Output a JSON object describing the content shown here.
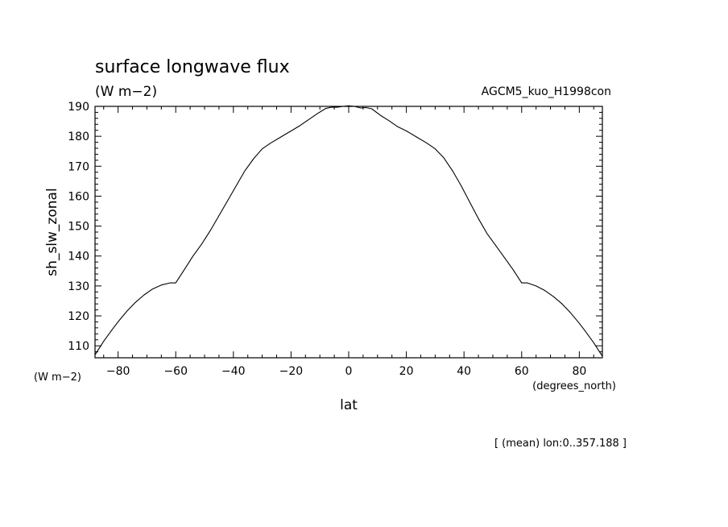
{
  "chart_data": {
    "type": "line",
    "title": "surface longwave flux",
    "subtitle": "(W m−2)",
    "annotation_right": "AGCM5_kuo_H1998con",
    "ylabel": "sh_slw_zonal",
    "yunits": "(W m−2)",
    "xlabel": "lat",
    "xunits": "(degrees_north)",
    "footer": "[ (mean) lon:0..357.188 ]",
    "xlim": [
      -88,
      88
    ],
    "ylim": [
      106,
      190
    ],
    "xticks": [
      -80,
      -60,
      -40,
      -20,
      0,
      20,
      40,
      60,
      80
    ],
    "xtick_labels": [
      "−80",
      "−60",
      "−40",
      "−20",
      "0",
      "20",
      "40",
      "60",
      "80"
    ],
    "yticks": [
      110,
      120,
      130,
      140,
      150,
      160,
      170,
      180,
      190
    ],
    "ytick_labels": [
      "110",
      "120",
      "130",
      "140",
      "150",
      "160",
      "170",
      "180",
      "190"
    ],
    "grid": false,
    "series": [
      {
        "x": [
          -88,
          -85,
          -82,
          -80,
          -77,
          -74,
          -71,
          -68,
          -65,
          -62,
          -60,
          -57,
          -54,
          -51,
          -48,
          -45,
          -42,
          -39,
          -36,
          -33,
          -30,
          -27,
          -24,
          -20,
          -17,
          -14,
          -11,
          -8,
          -6,
          -4,
          -2,
          0,
          2,
          4,
          6,
          8,
          11,
          14,
          17,
          20,
          24,
          27,
          30,
          33,
          36,
          39,
          42,
          45,
          48,
          51,
          54,
          57,
          60,
          62,
          65,
          68,
          71,
          74,
          77,
          80,
          82,
          85,
          88
        ],
        "y": [
          107,
          111.5,
          115.5,
          118,
          121.5,
          124.5,
          127,
          129,
          130.3,
          131,
          131,
          135.5,
          140,
          144,
          148.5,
          153.5,
          158.5,
          163.5,
          168.5,
          172.5,
          175.8,
          177.8,
          179.5,
          181.8,
          183.5,
          185.5,
          187.5,
          189.3,
          189.7,
          189.7,
          190,
          190.2,
          190,
          189.5,
          189.6,
          189.2,
          187,
          185.2,
          183.2,
          181.8,
          179.5,
          177.8,
          175.8,
          172.8,
          168.5,
          163.5,
          158,
          152.5,
          147.5,
          143.5,
          139.5,
          135.5,
          131,
          131,
          130,
          128.5,
          126.5,
          124,
          121,
          117.5,
          115,
          111,
          106.5
        ]
      }
    ]
  }
}
